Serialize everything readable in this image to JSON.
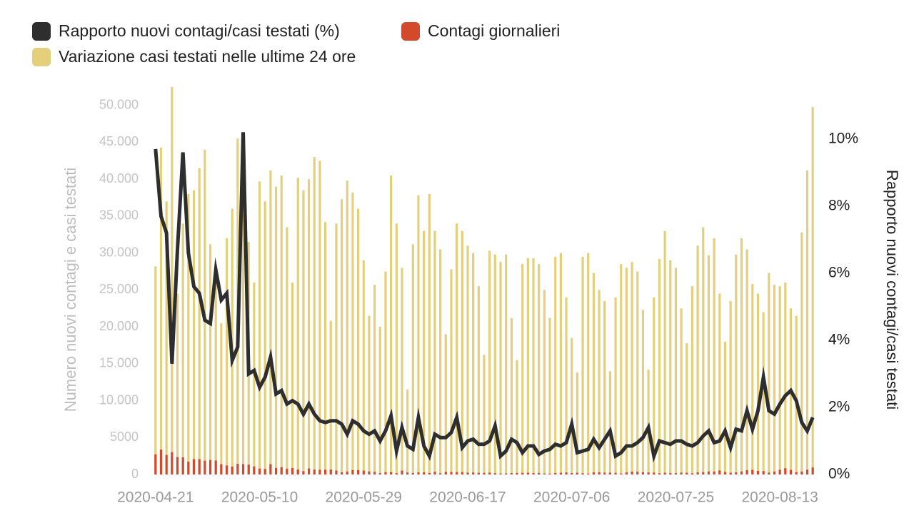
{
  "chart_data": {
    "type": "bar",
    "ylabel": "Numero nuovi contagi e casi testati",
    "y2label": "Rapporto nuovi contagi/casi testati",
    "categories": [
      "2020-04-21",
      null,
      null,
      null,
      null,
      null,
      null,
      null,
      null,
      null,
      null,
      null,
      null,
      null,
      null,
      null,
      null,
      null,
      null,
      "2020-05-10",
      null,
      null,
      null,
      null,
      null,
      null,
      null,
      null,
      null,
      null,
      null,
      null,
      null,
      null,
      null,
      null,
      null,
      null,
      "2020-05-29",
      null,
      null,
      null,
      null,
      null,
      null,
      null,
      null,
      null,
      null,
      null,
      null,
      null,
      null,
      null,
      null,
      null,
      null,
      "2020-06-17",
      null,
      null,
      null,
      null,
      null,
      null,
      null,
      null,
      null,
      null,
      null,
      null,
      null,
      null,
      null,
      null,
      null,
      null,
      "2020-07-06",
      null,
      null,
      null,
      null,
      null,
      null,
      null,
      null,
      null,
      null,
      null,
      null,
      null,
      null,
      null,
      null,
      null,
      null,
      "2020-07-25",
      null,
      null,
      null,
      null,
      null,
      null,
      null,
      null,
      null,
      null,
      null,
      null,
      null,
      null,
      null,
      null,
      null,
      null,
      "2020-08-13",
      null,
      null,
      null,
      null,
      null,
      null
    ],
    "ylim": [
      0,
      55000
    ],
    "yticks": [
      0,
      5000,
      {
        "value": 10000,
        "label": "10.000"
      },
      {
        "value": 15000,
        "label": "15.000"
      },
      {
        "value": 20000,
        "label": "20.000"
      },
      {
        "value": 25000,
        "label": "25.000"
      },
      {
        "value": 30000,
        "label": "30.000"
      },
      {
        "value": 35000,
        "label": "35.000"
      },
      {
        "value": 40000,
        "label": "40.000"
      },
      {
        "value": 45000,
        "label": "45.000"
      },
      {
        "value": 50000,
        "label": "50.000"
      }
    ],
    "y2lim": [
      0,
      12.1
    ],
    "y2ticks": [
      {
        "value": 0,
        "label": "0%"
      },
      {
        "value": 2,
        "label": "2%"
      },
      {
        "value": 4,
        "label": "4%"
      },
      {
        "value": 6,
        "label": "6%"
      },
      {
        "value": 8,
        "label": "8%"
      },
      {
        "value": 10,
        "label": "10%"
      }
    ],
    "series": [
      {
        "name": "Rapporto nuovi contagi/casi testati (%)",
        "type": "line",
        "axis": "y2",
        "color": "#2e2e2e",
        "values": [
          9.7,
          7.7,
          7.2,
          3.3,
          6.7,
          9.6,
          6.6,
          5.6,
          5.4,
          4.6,
          4.5,
          6.1,
          5.2,
          5.4,
          3.4,
          3.8,
          10.2,
          3.0,
          3.1,
          2.6,
          2.9,
          3.5,
          2.4,
          2.5,
          2.1,
          2.2,
          2.1,
          1.8,
          2.1,
          1.8,
          1.6,
          1.55,
          1.6,
          1.6,
          1.5,
          1.2,
          1.6,
          1.5,
          1.3,
          1.2,
          1.3,
          1.0,
          1.3,
          1.75,
          0.7,
          1.4,
          0.85,
          0.75,
          1.7,
          0.85,
          0.55,
          1.2,
          1.1,
          1.1,
          1.25,
          1.7,
          0.8,
          1.0,
          1.05,
          0.9,
          0.9,
          1.0,
          1.45,
          0.55,
          0.7,
          1.05,
          0.95,
          0.65,
          0.85,
          0.85,
          0.6,
          0.7,
          0.75,
          0.9,
          0.85,
          0.95,
          1.5,
          0.65,
          0.7,
          0.75,
          1.05,
          0.8,
          1.05,
          1.3,
          0.55,
          0.65,
          0.85,
          0.85,
          0.95,
          1.1,
          1.4,
          0.55,
          1.0,
          0.95,
          0.9,
          1.0,
          1.0,
          0.9,
          0.85,
          0.95,
          1.15,
          1.3,
          0.95,
          1.0,
          1.3,
          0.8,
          1.35,
          1.3,
          1.9,
          1.35,
          1.9,
          2.9,
          1.9,
          1.8,
          2.1,
          2.35,
          2.5,
          2.2,
          1.55,
          1.3,
          1.7
        ]
      },
      {
        "name": "Contagi giornalieri",
        "type": "bar",
        "color": "#d2492c",
        "values": [
          2729,
          3370,
          2646,
          3021,
          2357,
          2324,
          1739,
          2091,
          2086,
          1872,
          1965,
          1900,
          1389,
          1221,
          1075,
          1444,
          1401,
          1327,
          1083,
          802,
          744,
          1402,
          888,
          992,
          789,
          875,
          675,
          451,
          813,
          665,
          642,
          652,
          669,
          531,
          300,
          397,
          584,
          593,
          516,
          416,
          355,
          178,
          318,
          321,
          177,
          518,
          270,
          197,
          280,
          283,
          202,
          379,
          163,
          346,
          338,
          331,
          333,
          251,
          264,
          224,
          221,
          259,
          175,
          126,
          142,
          187,
          201,
          223,
          235,
          192,
          208,
          138,
          114,
          193,
          229,
          276,
          188,
          234,
          168,
          114,
          282,
          306,
          252,
          249,
          218,
          128,
          280,
          386,
          379,
          295,
          275,
          255,
          170,
          239,
          190,
          181,
          259,
          239,
          159,
          292,
          320,
          402,
          401,
          552,
          347,
          238,
          289,
          412,
          574,
          629,
          479,
          463,
          259,
          403,
          642,
          845,
          629,
          320,
          403,
          642,
          947
        ]
      },
      {
        "name": "Variazione casi testati nelle ultime 24 ore",
        "type": "bar",
        "color": "#e3cf7c",
        "values": [
          28200,
          44300,
          37000,
          52500,
          24500,
          34000,
          38000,
          38500,
          41500,
          44000,
          31200,
          27000,
          20500,
          32000,
          36000,
          45500,
          36000,
          31500,
          26000,
          39700,
          37000,
          41200,
          39000,
          40500,
          33500,
          26000,
          40200,
          38500,
          40000,
          43000,
          42500,
          34200,
          20800,
          34000,
          37300,
          39800,
          38200,
          36000,
          29000,
          21500,
          25700,
          20000,
          27500,
          40500,
          34000,
          28000,
          11500,
          31200,
          37800,
          33000,
          38000,
          33000,
          30500,
          19000,
          27800,
          34000,
          33000,
          31000,
          30000,
          25500,
          16200,
          30300,
          29800,
          28800,
          29800,
          21200,
          15500,
          28500,
          29300,
          29300,
          28500,
          25000,
          21200,
          29500,
          30000,
          24000,
          18500,
          13800,
          29500,
          30000,
          27300,
          25000,
          23500,
          14000,
          24000,
          28500,
          28000,
          28800,
          27500,
          22300,
          14200,
          24000,
          29200,
          33000,
          29000,
          28000,
          22500,
          17800,
          25500,
          31000,
          33500,
          29700,
          32000,
          24500,
          18000,
          23500,
          29800,
          32000,
          30500,
          25800,
          24500,
          22000,
          27300,
          25700,
          25500,
          26000,
          22500,
          21500,
          32800,
          41200,
          49800
        ]
      }
    ]
  }
}
